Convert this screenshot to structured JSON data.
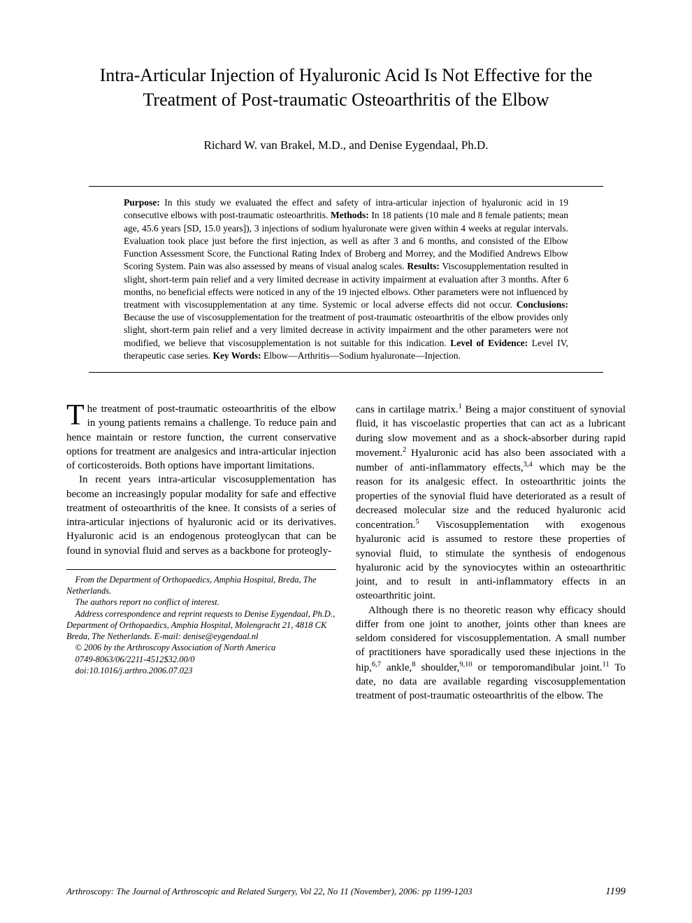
{
  "title": "Intra-Articular Injection of Hyaluronic Acid Is Not Effective for the Treatment of Post-traumatic Osteoarthritis of the Elbow",
  "authors": "Richard W. van Brakel, M.D., and Denise Eygendaal, Ph.D.",
  "abstract": {
    "purpose_label": "Purpose:",
    "purpose": " In this study we evaluated the effect and safety of intra-articular injection of hyaluronic acid in 19 consecutive elbows with post-traumatic osteoarthritis. ",
    "methods_label": "Methods:",
    "methods": " In 18 patients (10 male and 8 female patients; mean age, 45.6 years [SD, 15.0 years]), 3 injections of sodium hyaluronate were given within 4 weeks at regular intervals. Evaluation took place just before the first injection, as well as after 3 and 6 months, and consisted of the Elbow Function Assessment Score, the Functional Rating Index of Broberg and Morrey, and the Modified Andrews Elbow Scoring System. Pain was also assessed by means of visual analog scales. ",
    "results_label": "Results:",
    "results": " Viscosupplementation resulted in slight, short-term pain relief and a very limited decrease in activity impairment at evaluation after 3 months. After 6 months, no beneficial effects were noticed in any of the 19 injected elbows. Other parameters were not influenced by treatment with viscosupplementation at any time. Systemic or local adverse effects did not occur. ",
    "conclusions_label": "Conclusions:",
    "conclusions": " Because the use of viscosupplementation for the treatment of post-traumatic osteoarthritis of the elbow provides only slight, short-term pain relief and a very limited decrease in activity impairment and the other parameters were not modified, we believe that viscosupplementation is not suitable for this indication. ",
    "loe_label": "Level of Evidence:",
    "loe": " Level IV, therapeutic case series. ",
    "keywords_label": "Key Words:",
    "keywords": " Elbow—Arthritis—Sodium hyaluronate—Injection."
  },
  "body": {
    "p1_drop": "T",
    "p1": "he treatment of post-traumatic osteoarthritis of the elbow in young patients remains a challenge. To reduce pain and hence maintain or restore function, the current conservative options for treatment are analgesics and intra-articular injection of corticosteroids. Both options have important limitations.",
    "p2": "In recent years intra-articular viscosupplementation has become an increasingly popular modality for safe and effective treatment of osteoarthritis of the knee. It consists of a series of intra-articular injections of hyaluronic acid or its derivatives. Hyaluronic acid is an endogenous proteoglycan that can be found in synovial fluid and serves as a backbone for proteogly-",
    "p3a": "cans in cartilage matrix.",
    "p3b": " Being a major constituent of synovial fluid, it has viscoelastic properties that can act as a lubricant during slow movement and as a shock-absorber during rapid movement.",
    "p3c": " Hyaluronic acid has also been associated with a number of anti-inflammatory effects,",
    "p3d": " which may be the reason for its analgesic effect. In osteoarthritic joints the properties of the synovial fluid have deteriorated as a result of decreased molecular size and the reduced hyaluronic acid concentration.",
    "p3e": " Viscosupplementation with exogenous hyaluronic acid is assumed to restore these properties of synovial fluid, to stimulate the synthesis of endogenous hyaluronic acid by the synoviocytes within an osteoarthritic joint, and to result in anti-inflammatory effects in an osteoarthritic joint.",
    "p4a": "Although there is no theoretic reason why efficacy should differ from one joint to another, joints other than knees are seldom considered for viscosupplementation. A small number of practitioners have sporadically used these injections in the hip,",
    "p4b": " ankle,",
    "p4c": " shoulder,",
    "p4d": " or temporomandibular joint.",
    "p4e": " To date, no data are available regarding viscosupplementation treatment of post-traumatic osteoarthritis of the elbow. The",
    "ref1": "1",
    "ref2": "2",
    "ref34": "3,4",
    "ref5": "5",
    "ref67": "6,7",
    "ref8": "8",
    "ref910": "9,10",
    "ref11": "11"
  },
  "footnotes": {
    "f1": "From the Department of Orthopaedics, Amphia Hospital, Breda, The Netherlands.",
    "f2": "The authors report no conflict of interest.",
    "f3": "Address correspondence and reprint requests to Denise Eygendaal, Ph.D., Department of Orthopaedics, Amphia Hospital, Molengracht 21, 4818 CK Breda, The Netherlands. E-mail: denise@eygendaal.nl",
    "f4": "© 2006 by the Arthroscopy Association of North America",
    "f5": "0749-8063/06/2211-4512$32.00/0",
    "f6": "doi:10.1016/j.arthro.2006.07.023"
  },
  "footer": {
    "journal": "Arthroscopy: The Journal of Arthroscopic and Related Surgery, Vol 22, No 11 (November), 2006: pp 1199-1203",
    "page": "1199"
  }
}
